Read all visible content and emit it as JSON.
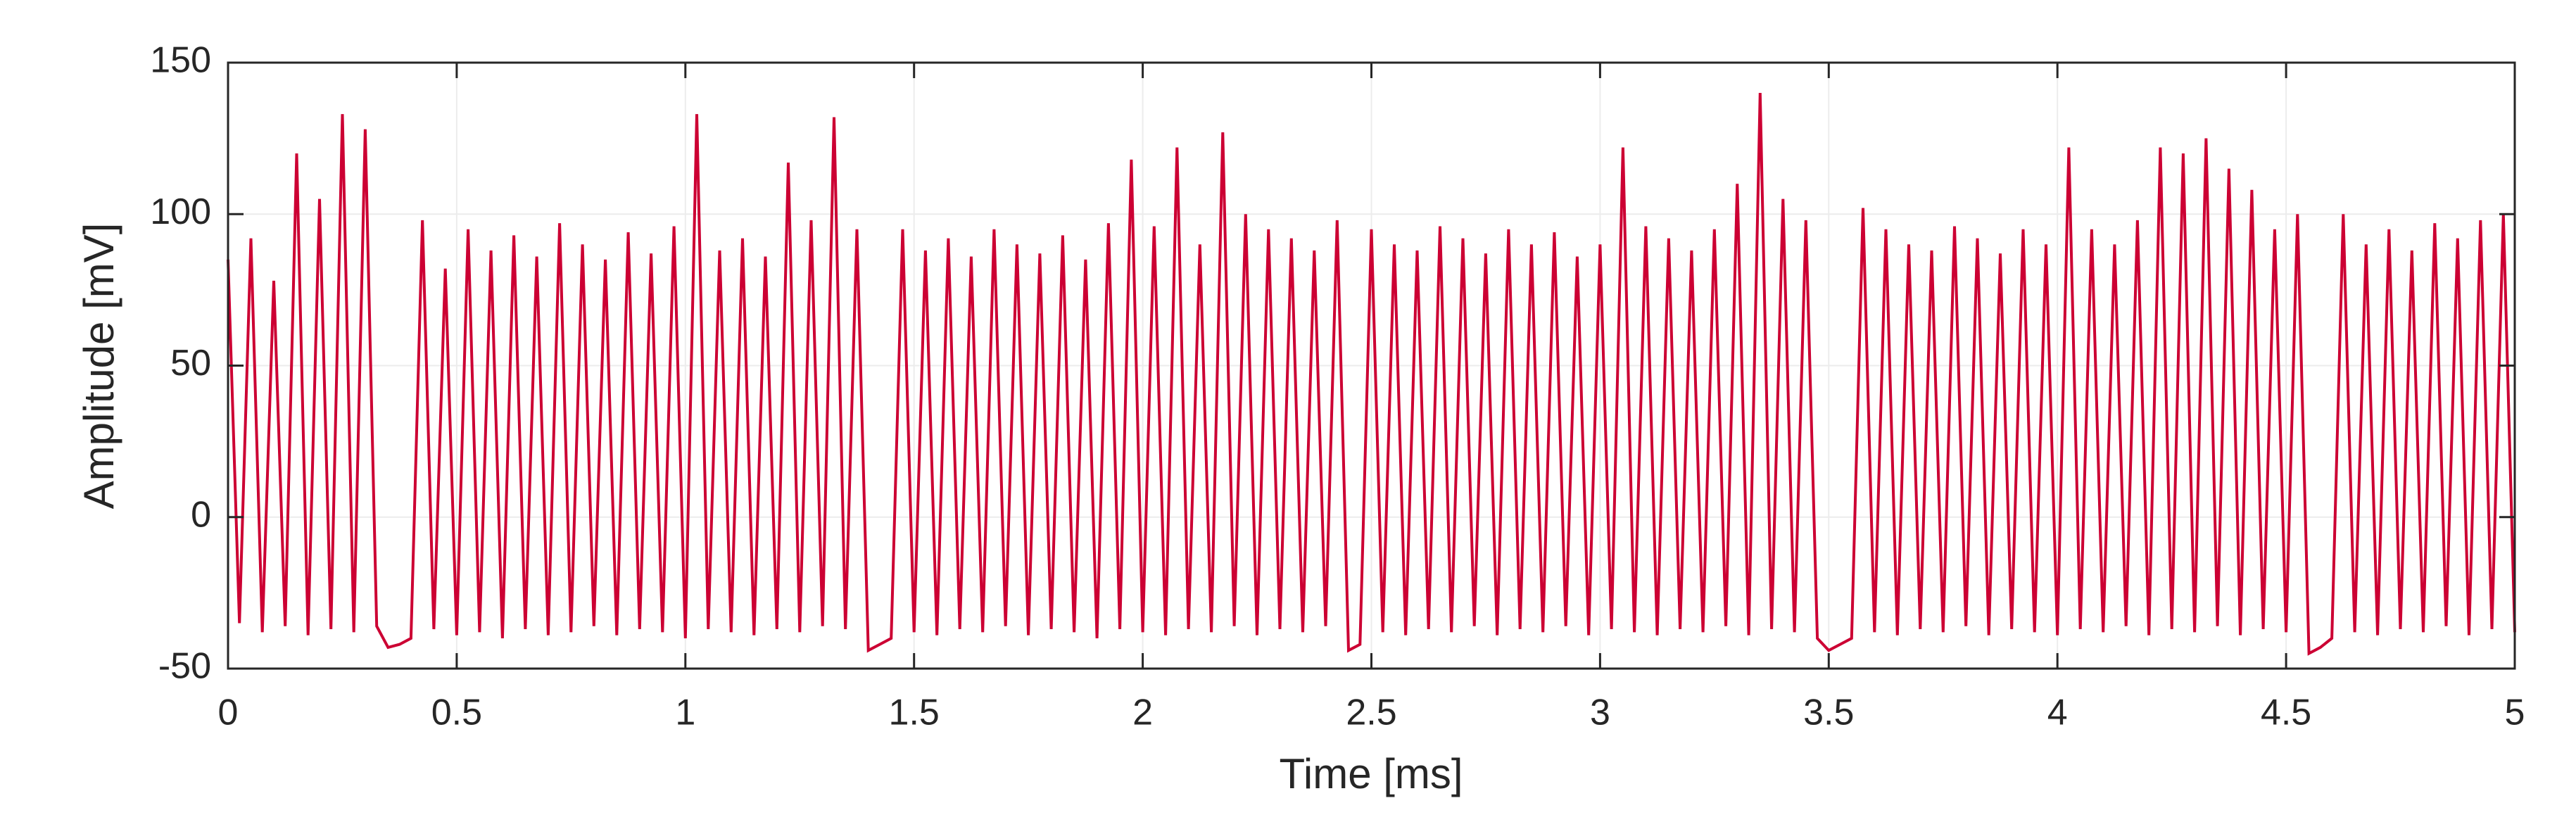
{
  "chart_data": {
    "type": "line",
    "x_label": "Time [ms]",
    "y_label": "Amplitude [mV]",
    "xlim": [
      0,
      5
    ],
    "ylim": [
      -50,
      150
    ],
    "xticks": [
      0,
      0.5,
      1,
      1.5,
      2,
      2.5,
      3,
      3.5,
      4,
      4.5,
      5
    ],
    "yticks": [
      -50,
      0,
      50,
      100,
      150
    ],
    "grid": true,
    "x": [
      0,
      0.025,
      0.05,
      0.075,
      0.1,
      0.125,
      0.15,
      0.175,
      0.2,
      0.225,
      0.25,
      0.275,
      0.3,
      0.325,
      0.35,
      0.375,
      0.4,
      0.425,
      0.45,
      0.475,
      0.5,
      0.525,
      0.55,
      0.575,
      0.6,
      0.625,
      0.65,
      0.675,
      0.7,
      0.725,
      0.75,
      0.775,
      0.8,
      0.825,
      0.85,
      0.875,
      0.9,
      0.925,
      0.95,
      0.975,
      1,
      1.025,
      1.05,
      1.075,
      1.1,
      1.125,
      1.15,
      1.175,
      1.2,
      1.225,
      1.25,
      1.275,
      1.3,
      1.325,
      1.35,
      1.375,
      1.4,
      1.425,
      1.45,
      1.475,
      1.5,
      1.525,
      1.55,
      1.575,
      1.6,
      1.625,
      1.65,
      1.675,
      1.7,
      1.725,
      1.75,
      1.775,
      1.8,
      1.825,
      1.85,
      1.875,
      1.9,
      1.925,
      1.95,
      1.975,
      2,
      2.025,
      2.05,
      2.075,
      2.1,
      2.125,
      2.15,
      2.175,
      2.2,
      2.225,
      2.25,
      2.275,
      2.3,
      2.325,
      2.35,
      2.375,
      2.4,
      2.425,
      2.45,
      2.475,
      2.5,
      2.525,
      2.55,
      2.575,
      2.6,
      2.625,
      2.65,
      2.675,
      2.7,
      2.725,
      2.75,
      2.775,
      2.8,
      2.825,
      2.85,
      2.875,
      2.9,
      2.925,
      2.95,
      2.975,
      3,
      3.025,
      3.05,
      3.075,
      3.1,
      3.125,
      3.15,
      3.175,
      3.2,
      3.225,
      3.25,
      3.275,
      3.3,
      3.325,
      3.35,
      3.375,
      3.4,
      3.425,
      3.45,
      3.475,
      3.5,
      3.525,
      3.55,
      3.575,
      3.6,
      3.625,
      3.65,
      3.675,
      3.7,
      3.725,
      3.75,
      3.775,
      3.8,
      3.825,
      3.85,
      3.875,
      3.9,
      3.925,
      3.95,
      3.975,
      4,
      4.025,
      4.05,
      4.075,
      4.1,
      4.125,
      4.15,
      4.175,
      4.2,
      4.225,
      4.25,
      4.275,
      4.3,
      4.325,
      4.35,
      4.375,
      4.4,
      4.425,
      4.45,
      4.475,
      4.5,
      4.525,
      4.55,
      4.575,
      4.6,
      4.625,
      4.65,
      4.675,
      4.7,
      4.725,
      4.75,
      4.775,
      4.8,
      4.825,
      4.85,
      4.875,
      4.9,
      4.925,
      4.95,
      4.975,
      5
    ],
    "series": [
      {
        "color": "#cc0033",
        "values": [
          85,
          -35,
          92,
          -38,
          78,
          -36,
          120,
          -39,
          105,
          -37,
          133,
          -38,
          128,
          -36,
          -43,
          -42,
          -40,
          98,
          -37,
          82,
          -39,
          95,
          -38,
          88,
          -40,
          93,
          -37,
          86,
          -39,
          97,
          -38,
          90,
          -36,
          85,
          -39,
          94,
          -37,
          87,
          -38,
          96,
          -40,
          133,
          -37,
          88,
          -38,
          92,
          -39,
          86,
          -37,
          117,
          -38,
          98,
          -36,
          132,
          -37,
          95,
          -44,
          -42,
          -40,
          95,
          -38,
          88,
          -39,
          92,
          -37,
          86,
          -38,
          95,
          -36,
          90,
          -39,
          87,
          -37,
          93,
          -38,
          85,
          -40,
          97,
          -37,
          118,
          -38,
          96,
          -39,
          122,
          -37,
          90,
          -38,
          127,
          -36,
          100,
          -39,
          95,
          -37,
          92,
          -38,
          88,
          -36,
          98,
          -44,
          -42,
          95,
          -38,
          90,
          -39,
          88,
          -37,
          96,
          -38,
          92,
          -36,
          87,
          -39,
          95,
          -37,
          90,
          -38,
          94,
          -36,
          86,
          -39,
          90,
          -37,
          122,
          -38,
          96,
          -39,
          92,
          -37,
          88,
          -38,
          95,
          -36,
          110,
          -39,
          140,
          -37,
          105,
          -38,
          98,
          -40,
          -44,
          -42,
          -40,
          102,
          -38,
          95,
          -39,
          90,
          -37,
          88,
          -38,
          96,
          -36,
          92,
          -39,
          87,
          -37,
          95,
          -38,
          90,
          -39,
          122,
          -37,
          95,
          -38,
          90,
          -36,
          98,
          -39,
          122,
          -37,
          120,
          -38,
          125,
          -36,
          115,
          -39,
          108,
          -37,
          95,
          -38,
          100,
          -45,
          -43,
          -40,
          100,
          -38,
          90,
          -39,
          95,
          -37,
          88,
          -38,
          97,
          -36,
          92,
          -39,
          98,
          -37,
          100,
          -38
        ]
      }
    ]
  }
}
